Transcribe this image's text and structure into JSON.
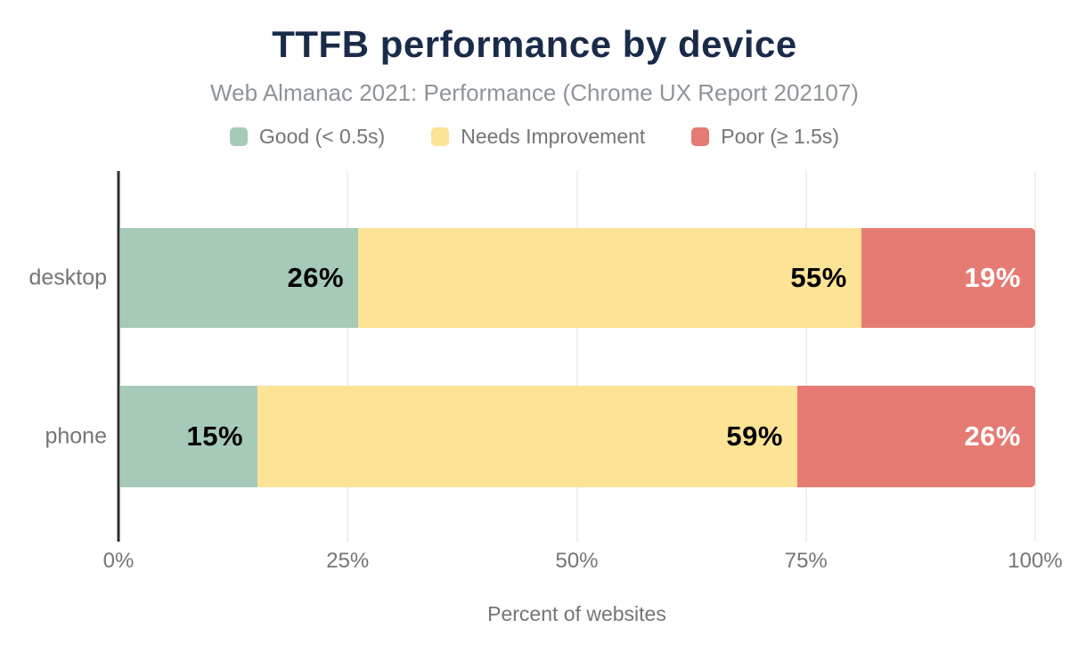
{
  "header": {
    "title": "TTFB performance by device",
    "subtitle": "Web Almanac 2021: Performance (Chrome UX Report 202107)"
  },
  "chart_data": {
    "type": "bar",
    "orientation": "horizontal",
    "stacked": true,
    "title": "TTFB performance by device",
    "subtitle": "Web Almanac 2021: Performance (Chrome UX Report 202107)",
    "xlabel": "Percent of websites",
    "ylabel": "",
    "categories": [
      "desktop",
      "phone"
    ],
    "series": [
      {
        "name": "Good (< 0.5s)",
        "color": "#a6cab8",
        "label_color": "#000000",
        "values": [
          26,
          15
        ]
      },
      {
        "name": "Needs Improvement",
        "color": "#fce396",
        "label_color": "#000000",
        "values": [
          55,
          59
        ]
      },
      {
        "name": "Poor (≥ 1.5s)",
        "color": "#e57b73",
        "label_color": "#ffffff",
        "values": [
          19,
          26
        ]
      }
    ],
    "value_label_suffix": "%",
    "x_ticks": [
      "0%",
      "25%",
      "50%",
      "75%",
      "100%"
    ],
    "x_tick_values": [
      0,
      25,
      50,
      75,
      100
    ],
    "xlim": [
      0,
      100
    ],
    "legend_position": "top",
    "grid": "vertical"
  },
  "colors": {
    "title": "#1a2b4a",
    "subtitle": "#8f9499",
    "axis_text": "#757575",
    "gridline": "#efefef",
    "axis_line": "#2f2f2f",
    "background": "#ffffff"
  }
}
